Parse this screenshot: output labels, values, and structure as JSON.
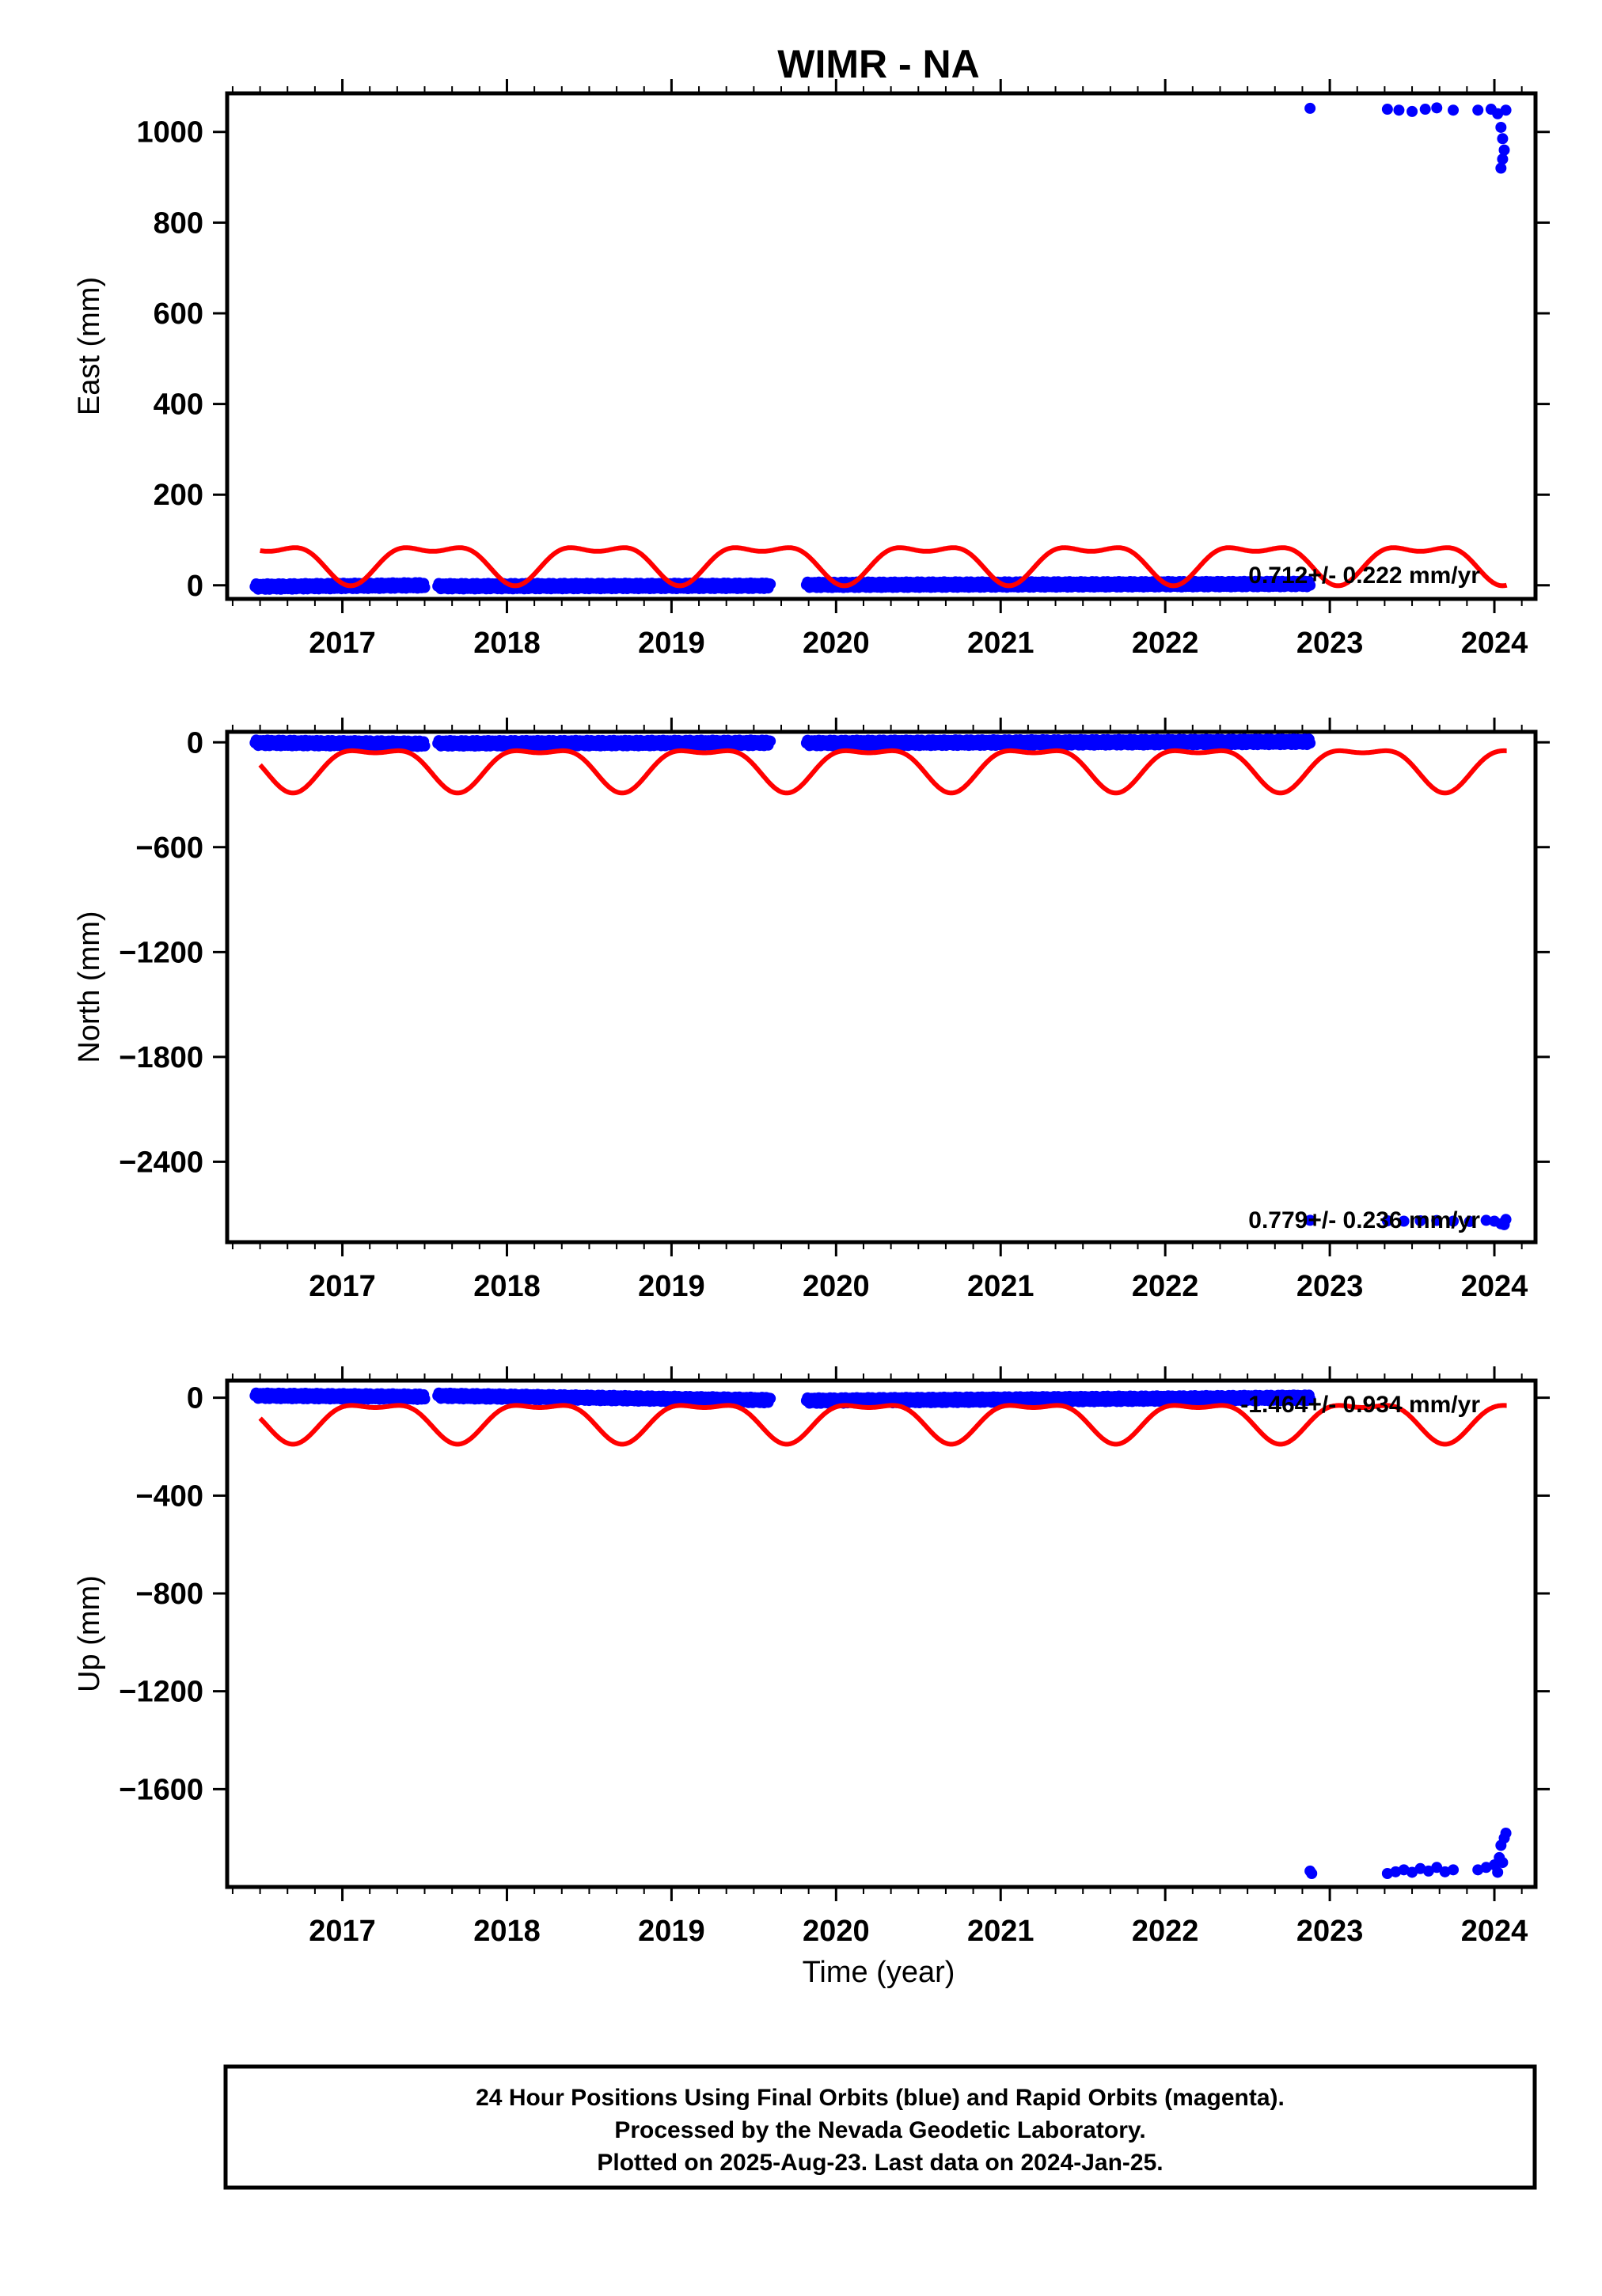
{
  "title": "WIMR - NA",
  "xlabel": "Time (year)",
  "footer": [
    "24 Hour Positions Using Final Orbits (blue) and Rapid Orbits (magenta).",
    "Processed by the Nevada Geodetic Laboratory.",
    "Plotted on 2025-Aug-23. Last data on 2024-Jan-25."
  ],
  "colors": {
    "data": "#0000ff",
    "model": "#ff0000",
    "frame": "#000000"
  },
  "chart_data": [
    {
      "type": "scatter",
      "ylabel": "East (mm)",
      "rate_label": "0.712+/- 0.222 mm/yr",
      "xlim": [
        2016.3,
        2024.25
      ],
      "ylim": [
        -30,
        1085
      ],
      "yticks": [
        0,
        200,
        400,
        600,
        800,
        1000
      ],
      "xticks": [
        2017,
        2018,
        2019,
        2020,
        2021,
        2022,
        2023,
        2024
      ],
      "grid": false,
      "segments": [
        {
          "x": [
            2016.47,
            2017.5
          ],
          "y": [
            -3,
            0
          ]
        },
        {
          "x": [
            2017.58,
            2019.6
          ],
          "y": [
            -2,
            -1
          ]
        },
        {
          "x": [
            2019.82,
            2022.88
          ],
          "y": [
            1,
            3
          ]
        }
      ],
      "points": [
        [
          2022.88,
          1052
        ],
        [
          2023.35,
          1050
        ],
        [
          2023.42,
          1048
        ],
        [
          2023.5,
          1045
        ],
        [
          2023.58,
          1050
        ],
        [
          2023.65,
          1053
        ],
        [
          2023.75,
          1048
        ],
        [
          2023.9,
          1048
        ],
        [
          2023.98,
          1050
        ],
        [
          2024.02,
          1040
        ],
        [
          2024.04,
          1010
        ],
        [
          2024.05,
          985
        ],
        [
          2024.06,
          960
        ],
        [
          2024.05,
          940
        ],
        [
          2024.04,
          920
        ],
        [
          2024.07,
          1048
        ]
      ],
      "model": {
        "x": [
          2016.5,
          2024.08
        ],
        "mean": 55,
        "annual_amp": 38,
        "semiannual_amp": 18,
        "annual_peak_frac": 0.55
      }
    },
    {
      "type": "scatter",
      "ylabel": "North (mm)",
      "rate_label": "0.779+/- 0.236 mm/yr",
      "xlim": [
        2016.3,
        2024.25
      ],
      "ylim": [
        -2860,
        60
      ],
      "yticks": [
        0,
        -600,
        -1200,
        -1800,
        -2400
      ],
      "xticks": [
        2017,
        2018,
        2019,
        2020,
        2021,
        2022,
        2023,
        2024
      ],
      "grid": false,
      "segments": [
        {
          "x": [
            2016.47,
            2017.5
          ],
          "y": [
            -3,
            -8
          ]
        },
        {
          "x": [
            2017.58,
            2019.6
          ],
          "y": [
            -6,
            -3
          ]
        },
        {
          "x": [
            2019.82,
            2022.88
          ],
          "y": [
            -4,
            3
          ]
        }
      ],
      "points": [
        [
          2022.88,
          -2735
        ],
        [
          2023.35,
          -2738
        ],
        [
          2023.45,
          -2740
        ],
        [
          2023.55,
          -2738
        ],
        [
          2023.65,
          -2736
        ],
        [
          2023.75,
          -2740
        ],
        [
          2023.85,
          -2742
        ],
        [
          2023.95,
          -2735
        ],
        [
          2024.0,
          -2740
        ],
        [
          2024.04,
          -2755
        ],
        [
          2024.06,
          -2760
        ],
        [
          2024.07,
          -2730
        ]
      ],
      "model": {
        "x": [
          2016.5,
          2024.08
        ],
        "mean": -130,
        "annual_amp": 115,
        "semiannual_amp": 45,
        "annual_peak_frac": 0.2
      }
    },
    {
      "type": "scatter",
      "ylabel": "Up (mm)",
      "rate_label": "-1.464+/- 0.934 mm/yr",
      "xlim": [
        2016.3,
        2024.25
      ],
      "ylim": [
        -2000,
        70
      ],
      "yticks": [
        0,
        -400,
        -800,
        -1200,
        -1600
      ],
      "xticks": [
        2017,
        2018,
        2019,
        2020,
        2021,
        2022,
        2023,
        2024
      ],
      "grid": false,
      "segments": [
        {
          "x": [
            2016.47,
            2017.5
          ],
          "y": [
            8,
            4
          ]
        },
        {
          "x": [
            2017.58,
            2019.6
          ],
          "y": [
            8,
            -10
          ]
        },
        {
          "x": [
            2019.82,
            2022.88
          ],
          "y": [
            -12,
            0
          ]
        }
      ],
      "points": [
        [
          2022.88,
          -1935
        ],
        [
          2022.89,
          -1945
        ],
        [
          2023.35,
          -1945
        ],
        [
          2023.4,
          -1938
        ],
        [
          2023.45,
          -1930
        ],
        [
          2023.5,
          -1940
        ],
        [
          2023.55,
          -1925
        ],
        [
          2023.6,
          -1935
        ],
        [
          2023.65,
          -1920
        ],
        [
          2023.7,
          -1938
        ],
        [
          2023.75,
          -1930
        ],
        [
          2023.9,
          -1930
        ],
        [
          2023.95,
          -1920
        ],
        [
          2024.0,
          -1910
        ],
        [
          2024.03,
          -1880
        ],
        [
          2024.04,
          -1830
        ],
        [
          2024.06,
          -1800
        ],
        [
          2024.07,
          -1780
        ],
        [
          2024.02,
          -1940
        ],
        [
          2024.05,
          -1900
        ]
      ],
      "model": {
        "x": [
          2016.5,
          2024.08
        ],
        "mean": -85,
        "annual_amp": 75,
        "semiannual_amp": 30,
        "annual_peak_frac": 0.2
      }
    }
  ]
}
